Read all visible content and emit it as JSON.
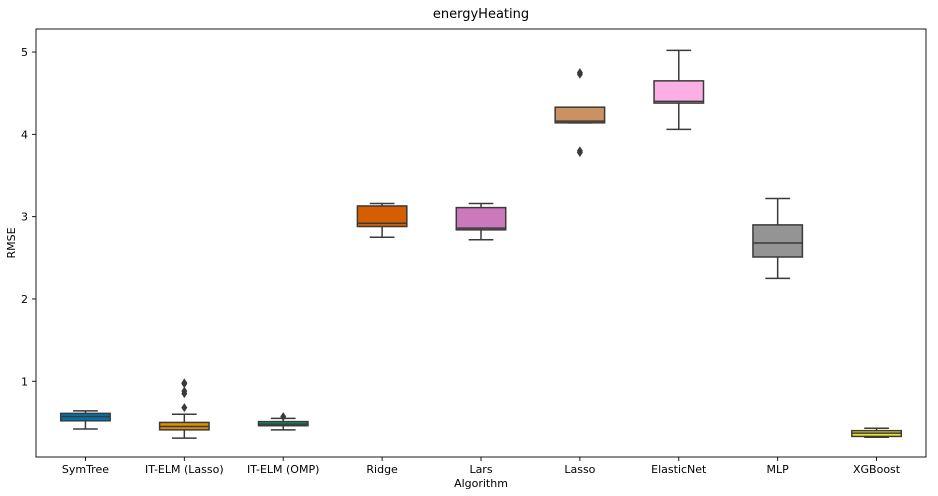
{
  "chart_data": {
    "type": "box",
    "title": "energyHeating",
    "xlabel": "Algorithm",
    "ylabel": "RMSE",
    "ylim": [
      0.08,
      5.28
    ],
    "yticks": [
      1,
      2,
      3,
      4,
      5
    ],
    "grid": false,
    "legend": "none",
    "categories": [
      "SymTree",
      "IT-ELM (Lasso)",
      "IT-ELM (OMP)",
      "Ridge",
      "Lars",
      "Lasso",
      "ElasticNet",
      "MLP",
      "XGBoost"
    ],
    "boxes": [
      {
        "category": "SymTree",
        "whisker_low": 0.42,
        "q1": 0.52,
        "median": 0.57,
        "q3": 0.61,
        "whisker_high": 0.64,
        "outliers": [],
        "color": "#0173b2"
      },
      {
        "category": "IT-ELM (Lasso)",
        "whisker_low": 0.31,
        "q1": 0.41,
        "median": 0.45,
        "q3": 0.5,
        "whisker_high": 0.6,
        "outliers": [
          0.68,
          0.85,
          0.88,
          0.97,
          0.98
        ],
        "color": "#de8f05"
      },
      {
        "category": "IT-ELM (OMP)",
        "whisker_low": 0.41,
        "q1": 0.46,
        "median": 0.48,
        "q3": 0.51,
        "whisker_high": 0.55,
        "outliers": [
          0.57
        ],
        "color": "#029e73"
      },
      {
        "category": "Ridge",
        "whisker_low": 2.75,
        "q1": 2.88,
        "median": 2.92,
        "q3": 3.13,
        "whisker_high": 3.16,
        "outliers": [],
        "color": "#d55e00"
      },
      {
        "category": "Lars",
        "whisker_low": 2.72,
        "q1": 2.84,
        "median": 2.86,
        "q3": 3.11,
        "whisker_high": 3.16,
        "outliers": [],
        "color": "#cc78bc"
      },
      {
        "category": "Lasso",
        "whisker_low": 4.14,
        "q1": 4.14,
        "median": 4.16,
        "q3": 4.33,
        "whisker_high": 4.33,
        "outliers": [
          3.78,
          3.8,
          4.73,
          4.75
        ],
        "color": "#ca9161"
      },
      {
        "category": "ElasticNet",
        "whisker_low": 4.06,
        "q1": 4.38,
        "median": 4.4,
        "q3": 4.65,
        "whisker_high": 5.02,
        "outliers": [],
        "color": "#fbafe4"
      },
      {
        "category": "MLP",
        "whisker_low": 2.25,
        "q1": 2.51,
        "median": 2.68,
        "q3": 2.9,
        "whisker_high": 3.22,
        "outliers": [],
        "color": "#949494"
      },
      {
        "category": "XGBoost",
        "whisker_low": 0.32,
        "q1": 0.33,
        "median": 0.37,
        "q3": 0.4,
        "whisker_high": 0.43,
        "outliers": [],
        "color": "#ece133"
      }
    ]
  }
}
